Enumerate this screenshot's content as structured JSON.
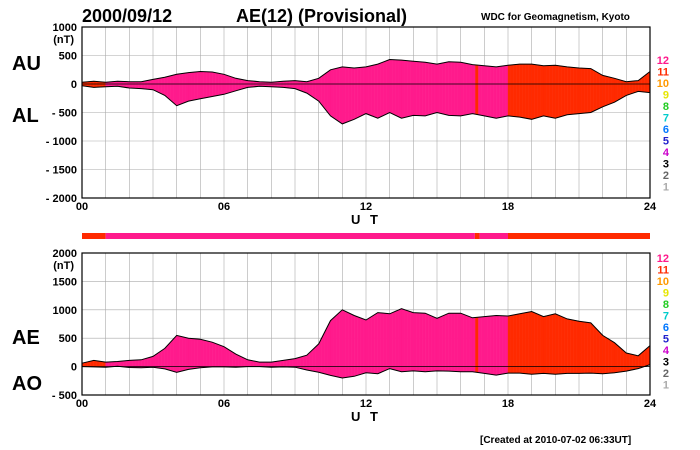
{
  "header": {
    "date": "2000/09/12",
    "title": "AE(12) (Provisional)",
    "source": "WDC for Geomagnetism, Kyoto",
    "created": "[Created at 2010-07-02 06:33UT]"
  },
  "legend_levels": [
    "12",
    "11",
    "10",
    "9",
    "8",
    "7",
    "6",
    "5",
    "4",
    "3",
    "2",
    "1"
  ],
  "legend_colors": [
    "#ff1a8c",
    "#ff2a00",
    "#ff9900",
    "#e6e600",
    "#22cc22",
    "#00cccc",
    "#0077ff",
    "#2222cc",
    "#cc00cc",
    "#000000",
    "#666666",
    "#aaaaaa"
  ],
  "colors": {
    "level12": "#ff1a8c",
    "level11": "#ff2a00"
  },
  "chart_data": [
    {
      "type": "area",
      "panel": "AU/AL",
      "upper_label": "AU",
      "lower_label": "AL",
      "unit": "(nT)",
      "xlabel": "U T",
      "xlim": [
        0,
        24
      ],
      "xticks": [
        "00",
        "06",
        "12",
        "18",
        "24"
      ],
      "ylim": [
        -2000,
        1000
      ],
      "yticks": [
        "1000",
        "500",
        "0",
        "- 500",
        "- 1000",
        "- 1500",
        "- 2000"
      ],
      "ytick_values": [
        1000,
        500,
        0,
        -500,
        -1000,
        -1500,
        -2000
      ],
      "grid": true,
      "x": [
        0,
        0.5,
        1,
        1.5,
        2,
        2.5,
        3,
        3.5,
        4,
        4.5,
        5,
        5.5,
        6,
        6.5,
        7,
        7.5,
        8,
        8.5,
        9,
        9.5,
        10,
        10.5,
        11,
        11.5,
        12,
        12.5,
        13,
        13.5,
        14,
        14.5,
        15,
        15.5,
        16,
        16.5,
        17,
        17.5,
        18,
        18.5,
        19,
        19.5,
        20,
        20.5,
        21,
        21.5,
        22,
        22.5,
        23,
        23.5,
        24
      ],
      "series": [
        {
          "name": "AU",
          "values": [
            30,
            50,
            30,
            50,
            40,
            40,
            80,
            120,
            170,
            200,
            220,
            210,
            170,
            100,
            60,
            40,
            30,
            50,
            60,
            40,
            100,
            250,
            300,
            280,
            300,
            350,
            430,
            420,
            400,
            380,
            350,
            390,
            380,
            340,
            320,
            300,
            330,
            350,
            350,
            320,
            330,
            300,
            280,
            270,
            150,
            100,
            40,
            60,
            220
          ]
        },
        {
          "name": "AL",
          "values": [
            -30,
            -60,
            -50,
            -40,
            -70,
            -80,
            -100,
            -200,
            -380,
            -300,
            -260,
            -220,
            -180,
            -120,
            -60,
            -40,
            -50,
            -60,
            -80,
            -160,
            -300,
            -560,
            -700,
            -620,
            -520,
            -600,
            -500,
            -600,
            -550,
            -560,
            -500,
            -550,
            -560,
            -520,
            -560,
            -600,
            -560,
            -580,
            -620,
            -560,
            -600,
            -540,
            -520,
            -500,
            -400,
            -320,
            -200,
            -130,
            -150
          ]
        }
      ]
    },
    {
      "type": "area",
      "panel": "AE/AO",
      "upper_label": "AE",
      "lower_label": "AO",
      "unit": "(nT)",
      "xlabel": "U T",
      "xlim": [
        0,
        24
      ],
      "xticks": [
        "00",
        "06",
        "12",
        "18",
        "24"
      ],
      "ylim": [
        -500,
        2000
      ],
      "yticks": [
        "2000",
        "1500",
        "1000",
        "500",
        "0",
        "- 500"
      ],
      "ytick_values": [
        2000,
        1500,
        1000,
        500,
        0,
        -500
      ],
      "grid": true,
      "x": [
        0,
        0.5,
        1,
        1.5,
        2,
        2.5,
        3,
        3.5,
        4,
        4.5,
        5,
        5.5,
        6,
        6.5,
        7,
        7.5,
        8,
        8.5,
        9,
        9.5,
        10,
        10.5,
        11,
        11.5,
        12,
        12.5,
        13,
        13.5,
        14,
        14.5,
        15,
        15.5,
        16,
        16.5,
        17,
        17.5,
        18,
        18.5,
        19,
        19.5,
        20,
        20.5,
        21,
        21.5,
        22,
        22.5,
        23,
        23.5,
        24
      ],
      "series": [
        {
          "name": "AE",
          "values": [
            60,
            110,
            80,
            90,
            110,
            120,
            180,
            320,
            550,
            500,
            480,
            430,
            350,
            220,
            120,
            80,
            80,
            110,
            140,
            200,
            400,
            810,
            1000,
            900,
            820,
            950,
            930,
            1020,
            950,
            940,
            850,
            940,
            940,
            860,
            880,
            900,
            890,
            930,
            970,
            880,
            930,
            840,
            800,
            770,
            550,
            420,
            240,
            190,
            370
          ]
        },
        {
          "name": "AO",
          "values": [
            0,
            -5,
            -10,
            5,
            -15,
            -20,
            -10,
            -40,
            -100,
            -50,
            -20,
            -5,
            -5,
            -10,
            0,
            0,
            -10,
            -5,
            -10,
            -60,
            -100,
            -155,
            -200,
            -170,
            -110,
            -125,
            -35,
            -90,
            -75,
            -90,
            -75,
            -80,
            -90,
            -90,
            -120,
            -150,
            -115,
            -115,
            -135,
            -120,
            -135,
            -120,
            -120,
            -115,
            -125,
            -110,
            -80,
            -35,
            35
          ]
        }
      ]
    }
  ],
  "level_bar": {
    "segments": [
      {
        "start": 0,
        "end": 1,
        "level": "11"
      },
      {
        "start": 1,
        "end": 16.6,
        "level": "12"
      },
      {
        "start": 16.6,
        "end": 16.8,
        "level": "11"
      },
      {
        "start": 16.8,
        "end": 18,
        "level": "12"
      },
      {
        "start": 18,
        "end": 24,
        "level": "11"
      }
    ]
  }
}
